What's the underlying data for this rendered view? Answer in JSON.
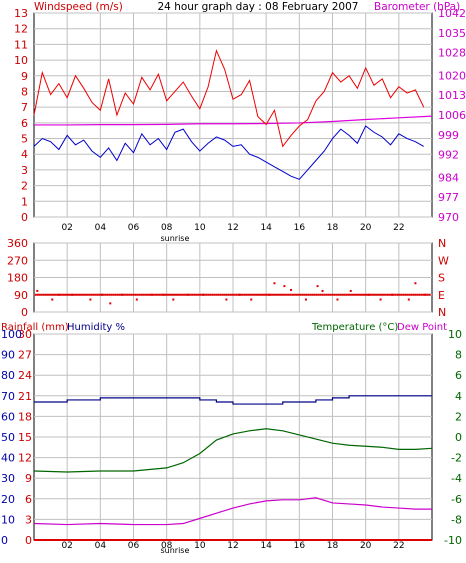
{
  "header": {
    "left_label": "Windspeed (m/s)",
    "title": "24 hour graph day : 08 February 2007",
    "right_label": "Barometer (hPa)"
  },
  "colors": {
    "windspeed_avg": "#0000cc",
    "windspeed_gust": "#ee0000",
    "barometer": "#dd00dd",
    "direction": "#dd0000",
    "humidity": "#000088",
    "temperature": "#006600",
    "dewpoint": "#cc00cc",
    "rainfall": "#dd0000",
    "grid": "#c0c0c0",
    "tick_red": "#cc0000",
    "tick_blue": "#0000aa",
    "tick_green": "#006600",
    "tick_magenta": "#cc00cc"
  },
  "chart_data": [
    {
      "type": "line",
      "title": "24 hour graph day : 08 February 2007",
      "x_tick_labels": [
        "02",
        "04",
        "06",
        "08",
        "10",
        "12",
        "14",
        "16",
        "18",
        "20",
        "22"
      ],
      "x_ticks_hours": [
        2,
        4,
        6,
        8,
        10,
        12,
        14,
        16,
        18,
        20,
        22
      ],
      "xlim": [
        0,
        24
      ],
      "marker_label": "sunrise",
      "marker_hour": 8.5,
      "left_axis": {
        "label": "Windspeed (m/s)",
        "ylim": [
          0,
          13
        ],
        "ticks": [
          "0",
          "1",
          "2",
          "3",
          "4",
          "5",
          "6",
          "7",
          "8",
          "9",
          "10",
          "11",
          "12",
          "13"
        ]
      },
      "right_axis": {
        "label": "Barometer (hPa)",
        "ylim": [
          970,
          1042
        ],
        "ticks": [
          "970",
          "977",
          "984",
          "992",
          "999",
          "1006",
          "1013",
          "1020",
          "1028",
          "1035",
          "1042"
        ]
      },
      "series": [
        {
          "name": "Windspeed (m/s)",
          "axis": "left",
          "x": [
            0,
            0.5,
            1,
            1.5,
            2,
            2.5,
            3,
            3.5,
            4,
            4.5,
            5,
            5.5,
            6,
            6.5,
            7,
            7.5,
            8,
            8.5,
            9,
            9.5,
            10,
            10.5,
            11,
            11.5,
            12,
            12.5,
            13,
            13.5,
            14,
            14.5,
            15,
            15.5,
            16,
            16.5,
            17,
            17.5,
            18,
            18.5,
            19,
            19.5,
            20,
            20.5,
            21,
            21.5,
            22,
            22.5,
            23,
            23.5
          ],
          "values": [
            4.5,
            5,
            4.8,
            4.3,
            5.2,
            4.6,
            4.9,
            4.2,
            3.8,
            4.4,
            3.6,
            4.7,
            4.1,
            5.3,
            4.6,
            5.0,
            4.3,
            5.4,
            5.6,
            4.8,
            4.2,
            4.7,
            5.1,
            4.9,
            4.5,
            4.6,
            4.0,
            3.8,
            3.5,
            3.2,
            2.9,
            2.6,
            2.4,
            3.0,
            3.6,
            4.2,
            5.0,
            5.6,
            5.2,
            4.7,
            5.8,
            5.4,
            5.1,
            4.6,
            5.3,
            5.0,
            4.8,
            4.5
          ]
        },
        {
          "name": "Gust",
          "axis": "left",
          "x": [
            0,
            0.5,
            1,
            1.5,
            2,
            2.5,
            3,
            3.5,
            4,
            4.5,
            5,
            5.5,
            6,
            6.5,
            7,
            7.5,
            8,
            8.5,
            9,
            9.5,
            10,
            10.5,
            11,
            11.5,
            12,
            12.5,
            13,
            13.5,
            14,
            14.5,
            15,
            15.5,
            16,
            16.5,
            17,
            17.5,
            18,
            18.5,
            19,
            19.5,
            20,
            20.5,
            21,
            21.5,
            22,
            22.5,
            23,
            23.5
          ],
          "values": [
            6.5,
            9.2,
            7.8,
            8.5,
            7.6,
            9.0,
            8.2,
            7.3,
            6.8,
            8.8,
            6.5,
            7.9,
            7.2,
            8.9,
            8.1,
            9.1,
            7.4,
            8.0,
            8.6,
            7.7,
            6.9,
            8.3,
            10.6,
            9.4,
            7.5,
            7.8,
            8.7,
            6.4,
            5.9,
            6.8,
            4.5,
            5.2,
            5.8,
            6.2,
            7.4,
            8.0,
            9.2,
            8.6,
            9.0,
            8.2,
            9.5,
            8.4,
            8.8,
            7.6,
            8.3,
            7.9,
            8.1,
            7.0
          ]
        },
        {
          "name": "Barometer (hPa)",
          "axis": "right",
          "x": [
            0,
            2,
            4,
            6,
            8,
            10,
            12,
            14,
            16,
            18,
            20,
            22,
            24
          ],
          "values": [
            1002.5,
            1002.5,
            1002.6,
            1002.6,
            1002.7,
            1002.9,
            1002.9,
            1003.0,
            1003.2,
            1003.7,
            1004.4,
            1005.0,
            1005.6
          ]
        }
      ]
    },
    {
      "type": "scatter",
      "title": "",
      "xlim": [
        0,
        24
      ],
      "left_axis": {
        "ylim": [
          0,
          360
        ],
        "ticks": [
          "0",
          "90",
          "180",
          "270",
          "360"
        ]
      },
      "right_axis": {
        "ticks": [
          "N",
          "E",
          "S",
          "W",
          "N"
        ]
      },
      "series": [
        {
          "name": "Wind direction",
          "x": [
            0.2,
            1.1,
            1.5,
            2.3,
            3.4,
            4.1,
            4.6,
            5.3,
            6.2,
            7.1,
            7.8,
            8.4,
            9.3,
            10.2,
            11.6,
            12.4,
            13.1,
            14.2,
            14.5,
            15.1,
            15.5,
            16.4,
            17.1,
            17.4,
            18.3,
            19.1,
            20.2,
            20.9,
            21.6,
            22.6,
            23.0,
            23.6
          ],
          "values": [
            110,
            65,
            90,
            90,
            65,
            90,
            45,
            90,
            65,
            90,
            90,
            65,
            90,
            90,
            65,
            90,
            65,
            90,
            150,
            135,
            115,
            65,
            135,
            110,
            65,
            110,
            90,
            65,
            90,
            65,
            150,
            90
          ]
        }
      ]
    },
    {
      "type": "line",
      "title": "",
      "labels": {
        "rainfall": "Rainfall (mm)",
        "humidity": "Humidity %",
        "temperature": "Temperature (°C)",
        "dewpoint": "Dew Point"
      },
      "x_tick_labels": [
        "02",
        "04",
        "06",
        "08",
        "10",
        "12",
        "14",
        "16",
        "18",
        "20",
        "22"
      ],
      "x_ticks_hours": [
        2,
        4,
        6,
        8,
        10,
        12,
        14,
        16,
        18,
        20,
        22
      ],
      "xlim": [
        0,
        24
      ],
      "marker_label": "sunrise",
      "marker_hour": 8.5,
      "rain_axis": {
        "label": "Rainfall (mm)",
        "ylim": [
          0,
          30
        ],
        "ticks": [
          "0",
          "3",
          "6",
          "9",
          "12",
          "15",
          "18",
          "21",
          "24",
          "27",
          "30"
        ]
      },
      "humidity_axis": {
        "label": "Humidity %",
        "ylim": [
          0,
          100
        ],
        "ticks": [
          "0",
          "10",
          "20",
          "30",
          "40",
          "50",
          "60",
          "70",
          "80",
          "90",
          "100"
        ]
      },
      "temp_axis": {
        "label": "Temperature (°C)",
        "ylim": [
          -10,
          10
        ],
        "ticks": [
          "-10",
          "-8",
          "-6",
          "-4",
          "-2",
          "0",
          "2",
          "4",
          "6",
          "8",
          "10"
        ]
      },
      "series": [
        {
          "name": "Humidity %",
          "axis": "humidity",
          "x": [
            0,
            1,
            2,
            3,
            4,
            5,
            6,
            7,
            8,
            9,
            10,
            11,
            12,
            13,
            14,
            15,
            16,
            17,
            18,
            19,
            20,
            21,
            22,
            23,
            24
          ],
          "values": [
            67,
            67,
            68,
            68,
            69,
            69,
            69,
            69,
            69,
            69,
            68,
            67,
            66,
            66,
            66,
            67,
            67,
            68,
            69,
            70,
            70,
            70,
            70,
            70,
            70
          ]
        },
        {
          "name": "Temperature (°C)",
          "axis": "temp",
          "x": [
            0,
            2,
            4,
            6,
            8,
            9,
            10,
            11,
            12,
            13,
            14,
            15,
            16,
            17,
            18,
            19,
            20,
            21,
            22,
            23,
            24
          ],
          "values": [
            -3.3,
            -3.4,
            -3.3,
            -3.3,
            -3.0,
            -2.5,
            -1.6,
            -0.3,
            0.3,
            0.6,
            0.8,
            0.6,
            0.2,
            -0.2,
            -0.6,
            -0.8,
            -0.9,
            -1.0,
            -1.2,
            -1.2,
            -1.1
          ]
        },
        {
          "name": "Dew Point",
          "axis": "temp",
          "x": [
            0,
            2,
            4,
            6,
            8,
            9,
            10,
            11,
            12,
            13,
            14,
            15,
            16,
            17,
            18,
            19,
            20,
            21,
            22,
            23,
            24
          ],
          "values": [
            -8.4,
            -8.5,
            -8.4,
            -8.5,
            -8.5,
            -8.4,
            -7.9,
            -7.4,
            -6.9,
            -6.5,
            -6.2,
            -6.1,
            -6.1,
            -5.9,
            -6.4,
            -6.5,
            -6.6,
            -6.8,
            -6.9,
            -7.0,
            -7.0
          ]
        },
        {
          "name": "Rainfall (mm)",
          "axis": "rain",
          "x": [
            0,
            24
          ],
          "values": [
            0,
            0
          ]
        }
      ]
    }
  ]
}
